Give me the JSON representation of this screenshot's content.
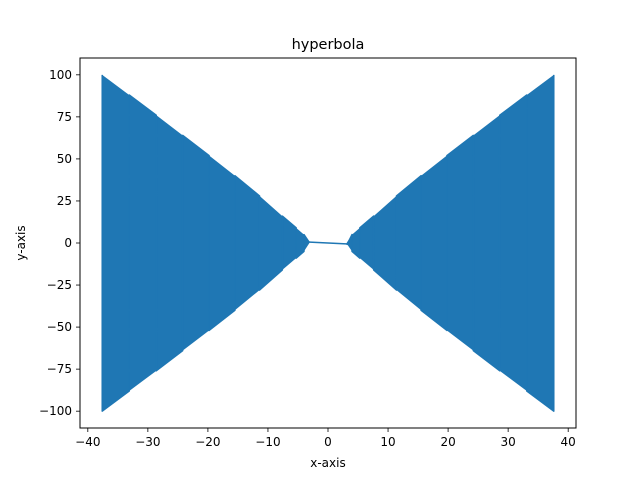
{
  "chart_data": {
    "type": "line",
    "title": "hyperbola",
    "xlabel": "x-axis",
    "ylabel": "y-axis",
    "xlim": [
      -41.3,
      41.3
    ],
    "ylim": [
      -110,
      110
    ],
    "x_ticks": [
      -40,
      -30,
      -20,
      -10,
      0,
      10,
      20,
      30,
      40
    ],
    "x_tick_labels": [
      "−40",
      "−30",
      "−20",
      "−10",
      "0",
      "10",
      "20",
      "30",
      "40"
    ],
    "y_ticks": [
      -100,
      -75,
      -50,
      -25,
      0,
      25,
      50,
      75,
      100
    ],
    "y_tick_labels": [
      "−100",
      "−75",
      "−50",
      "−25",
      "0",
      "25",
      "50",
      "75",
      "100"
    ],
    "grid": false,
    "series": [
      {
        "color": "#1f77b4",
        "x": [
          -37.6,
          -37.6,
          -33.1,
          -33.1,
          -28.6,
          -28.6,
          -24.2,
          -24.2,
          -19.8,
          -19.8,
          -15.5,
          -15.5,
          -11.4,
          -11.4,
          -7.6,
          -7.6,
          -5.3,
          -5.3,
          -4.0,
          -4.0,
          -3.2,
          -3.0,
          3.0,
          3.2,
          4.0,
          4.0,
          5.3,
          5.3,
          7.6,
          7.6,
          11.4,
          11.4,
          15.5,
          15.5,
          19.8,
          19.8,
          24.2,
          24.2,
          28.6,
          28.6,
          33.1,
          33.1,
          37.6,
          37.6
        ],
        "y": [
          100,
          -100,
          -88,
          88,
          76,
          -76,
          -64,
          64,
          52,
          -52,
          -40,
          40,
          28,
          -28,
          -16,
          16,
          9,
          -9,
          -5,
          5,
          0.8,
          0.5,
          -0.5,
          -0.8,
          5,
          -5,
          -9,
          9,
          16,
          -16,
          -28,
          28,
          40,
          -40,
          -52,
          52,
          64,
          -64,
          -76,
          76,
          88,
          -88,
          -100,
          100
        ]
      }
    ]
  }
}
